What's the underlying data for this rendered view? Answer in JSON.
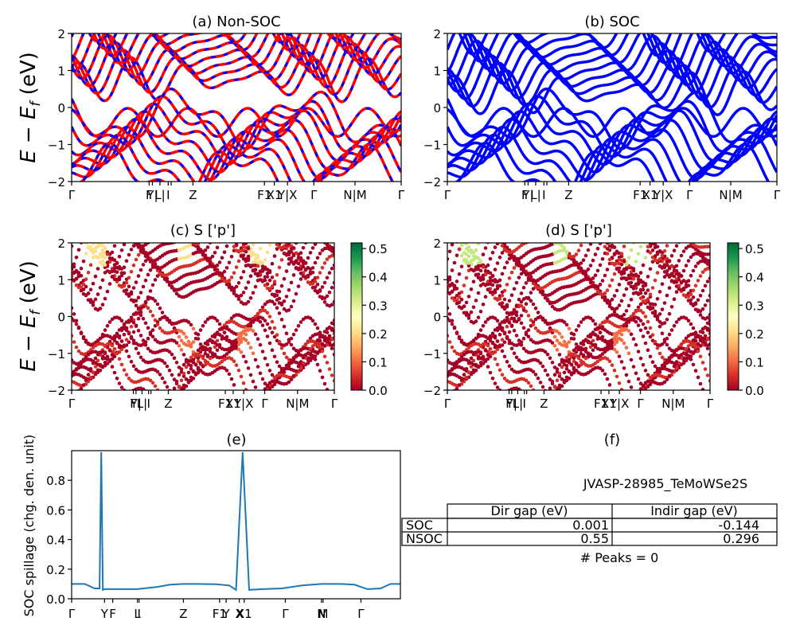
{
  "figure": {
    "ylabel_energy": "E − E_f (eV)",
    "yticks_energy": [
      "−2",
      "−1",
      "0",
      "1",
      "2"
    ],
    "colorbar_ticks": [
      "0.0",
      "0.1",
      "0.2",
      "0.3",
      "0.4",
      "0.5"
    ],
    "band_kpath_labels": [
      "Γ",
      "F",
      "Y",
      "L",
      "I",
      "I1",
      "Z",
      "F1",
      "X1",
      "Y",
      "X",
      "Γ",
      "N",
      "M",
      "Γ"
    ],
    "spillage_kpath_labels": [
      "Γ",
      "Y",
      "F",
      "L",
      "I",
      "I1",
      "Z",
      "F1",
      "Y",
      "X",
      "X1",
      "Γ",
      "N",
      "M",
      "Γ"
    ],
    "colors": {
      "nonsoc_red": "#ff0000",
      "nonsoc_blue": "#0000ff",
      "soc_blue": "#0000ff",
      "spillage_line": "#1f77b4"
    }
  },
  "chart_data": [
    {
      "id": "a",
      "type": "line",
      "title": "(a) Non-SOC",
      "ylabel": "E − E_f (eV)",
      "ylim": [
        -2,
        2
      ],
      "x_tick_labels": [
        "Γ",
        "F|Y",
        "L",
        "I",
        "I1",
        "Z",
        "F1",
        "X1",
        "Y|X",
        "Γ",
        "N|M",
        "Γ"
      ],
      "series": [
        {
          "name": "",
          "color": "#ff0000",
          "style": "solid",
          "description_values_eV": {
            "vbm": 0.0,
            "cbm_min": 0.3
          }
        },
        {
          "name": "",
          "color": "#0000ff",
          "style": "dashed"
        }
      ]
    },
    {
      "id": "b",
      "type": "line",
      "title": "(b) SOC",
      "ylabel": "",
      "ylim": [
        -2,
        2
      ],
      "x_tick_labels": [
        "Γ",
        "F|Y",
        "L",
        "I",
        "I1",
        "Z",
        "F1",
        "X1",
        "Y|X",
        "Γ",
        "N|M",
        "Γ"
      ],
      "series": [
        {
          "name": "",
          "color": "#0000ff",
          "style": "solid"
        }
      ]
    },
    {
      "id": "c",
      "type": "scatter",
      "title": "(c)  S ['p']",
      "ylabel": "E − E_f (eV)",
      "ylim": [
        -2,
        2
      ],
      "colorbar_range": [
        0,
        0.52
      ],
      "x_tick_labels": [
        "Γ",
        "F|Y",
        "L",
        "I",
        "I1",
        "Z",
        "F1",
        "X1",
        "Y|X",
        "Γ",
        "N|M",
        "Γ"
      ]
    },
    {
      "id": "d",
      "type": "scatter",
      "title": "(d) S ['p']",
      "ylabel": "",
      "ylim": [
        -2,
        2
      ],
      "colorbar_range": [
        0,
        0.52
      ],
      "x_tick_labels": [
        "Γ",
        "F|Y",
        "L",
        "I",
        "I1",
        "Z",
        "F1",
        "X1",
        "Y|X",
        "Γ",
        "N|M",
        "Γ"
      ]
    },
    {
      "id": "e",
      "type": "line",
      "title": "(e)",
      "ylabel": "SOC spillage (chg. den. unit)",
      "ylim": [
        0,
        1.0
      ],
      "y_ticks": [
        "0.0",
        "0.2",
        "0.4",
        "0.6",
        "0.8"
      ],
      "x_tick_labels": [
        "Γ",
        "Y",
        "F",
        "L",
        "I",
        "I1",
        "Z",
        "F1",
        "Y",
        "X",
        "X1",
        "Γ",
        "N",
        "M",
        "Γ"
      ],
      "x": [
        0,
        0.04,
        0.07,
        0.085,
        0.09,
        0.095,
        0.1,
        0.14,
        0.2,
        0.26,
        0.3,
        0.34,
        0.36,
        0.38,
        0.44,
        0.48,
        0.5,
        0.52,
        0.54,
        0.58,
        0.64,
        0.7,
        0.76,
        0.82,
        0.86,
        0.9,
        0.94,
        0.97,
        1.0
      ],
      "values": [
        0.1,
        0.1,
        0.07,
        0.07,
        0.99,
        0.06,
        0.065,
        0.065,
        0.065,
        0.08,
        0.095,
        0.1,
        0.1,
        0.1,
        0.098,
        0.09,
        0.06,
        0.99,
        0.06,
        0.065,
        0.07,
        0.09,
        0.1,
        0.1,
        0.095,
        0.065,
        0.07,
        0.1,
        0.1
      ],
      "series_name": "",
      "color": "#1f77b4"
    },
    {
      "id": "f",
      "type": "table",
      "title": "(f)",
      "caption": "JVASP-28985_TeMoWSe2S",
      "columns": [
        "Dir gap (eV)",
        "Indir gap (eV)"
      ],
      "rows": [
        {
          "label": "SOC",
          "dir": "0.001",
          "indir": "-0.144"
        },
        {
          "label": "NSOC",
          "dir": "0.55",
          "indir": "0.296"
        }
      ],
      "footer": "# Peaks = 0"
    }
  ]
}
